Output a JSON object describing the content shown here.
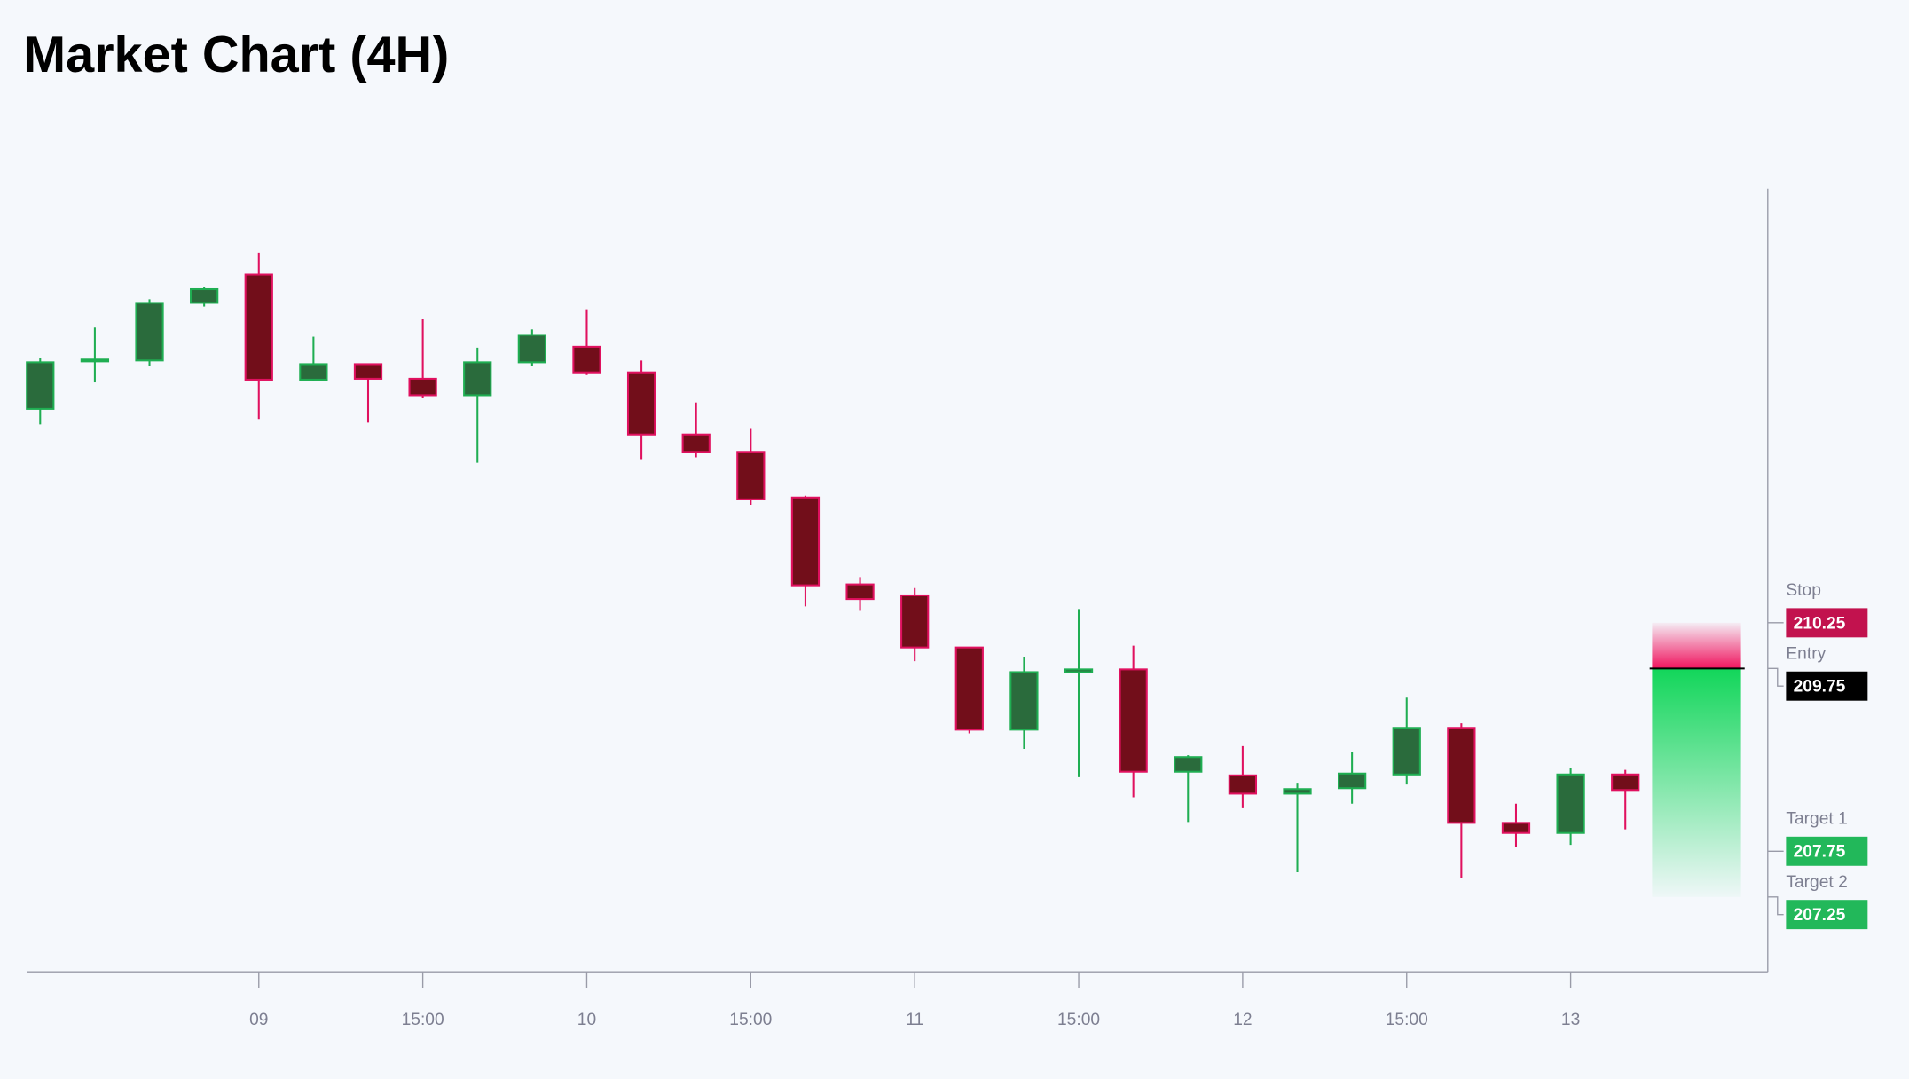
{
  "chart_data": {
    "type": "candlestick",
    "title": "Market Chart (4H)",
    "categories": [
      null,
      null,
      null,
      null,
      "09",
      null,
      null,
      "15:00",
      null,
      null,
      "10",
      null,
      null,
      "15:00",
      null,
      null,
      "11",
      null,
      null,
      "15:00",
      null,
      null,
      "12",
      null,
      null,
      "15:00",
      null,
      null,
      "13",
      null
    ],
    "open": [
      212.59,
      213.11,
      213.12,
      213.75,
      214.06,
      212.91,
      213.08,
      212.92,
      212.74,
      213.1,
      213.27,
      212.99,
      212.31,
      212.12,
      211.62,
      210.67,
      210.55,
      209.98,
      209.08,
      209.71,
      209.74,
      208.62,
      208.58,
      208.38,
      208.44,
      208.59,
      209.1,
      208.06,
      207.95,
      208.59
    ],
    "high": [
      213.15,
      213.48,
      213.79,
      213.92,
      214.3,
      213.38,
      213.08,
      213.58,
      213.26,
      213.46,
      213.68,
      213.12,
      212.66,
      212.38,
      211.64,
      210.75,
      210.63,
      209.98,
      209.88,
      210.4,
      210.0,
      208.8,
      208.9,
      208.5,
      208.84,
      209.43,
      209.15,
      208.27,
      208.66,
      208.64
    ],
    "low": [
      212.42,
      212.88,
      213.06,
      213.71,
      212.48,
      212.9,
      212.44,
      212.71,
      212.0,
      213.06,
      212.96,
      212.04,
      212.06,
      211.54,
      210.43,
      210.38,
      209.83,
      209.04,
      208.87,
      208.56,
      208.34,
      208.07,
      208.22,
      207.52,
      208.27,
      208.48,
      207.46,
      207.8,
      207.82,
      207.99
    ],
    "close": [
      213.1,
      213.13,
      213.75,
      213.9,
      212.91,
      213.08,
      212.92,
      212.74,
      213.1,
      213.4,
      212.99,
      212.31,
      212.12,
      211.6,
      210.66,
      210.51,
      209.98,
      209.08,
      209.71,
      209.74,
      208.62,
      208.78,
      208.38,
      208.43,
      208.6,
      209.1,
      208.06,
      207.95,
      208.59,
      208.42
    ],
    "up_color": "#2a6b3c",
    "up_border": "#1fae52",
    "down_color": "#720e1a",
    "down_border": "#e0115f",
    "ylim": [
      206.43,
      215.0
    ],
    "levels": [
      {
        "label": "Stop",
        "value": 210.25,
        "color": "#c2124e"
      },
      {
        "label": "Entry",
        "value": 209.75,
        "color": "#000000"
      },
      {
        "label": "Target 1",
        "value": 207.75,
        "color": "#22b85a"
      },
      {
        "label": "Target 2",
        "value": 207.25,
        "color": "#22b85a"
      }
    ]
  }
}
